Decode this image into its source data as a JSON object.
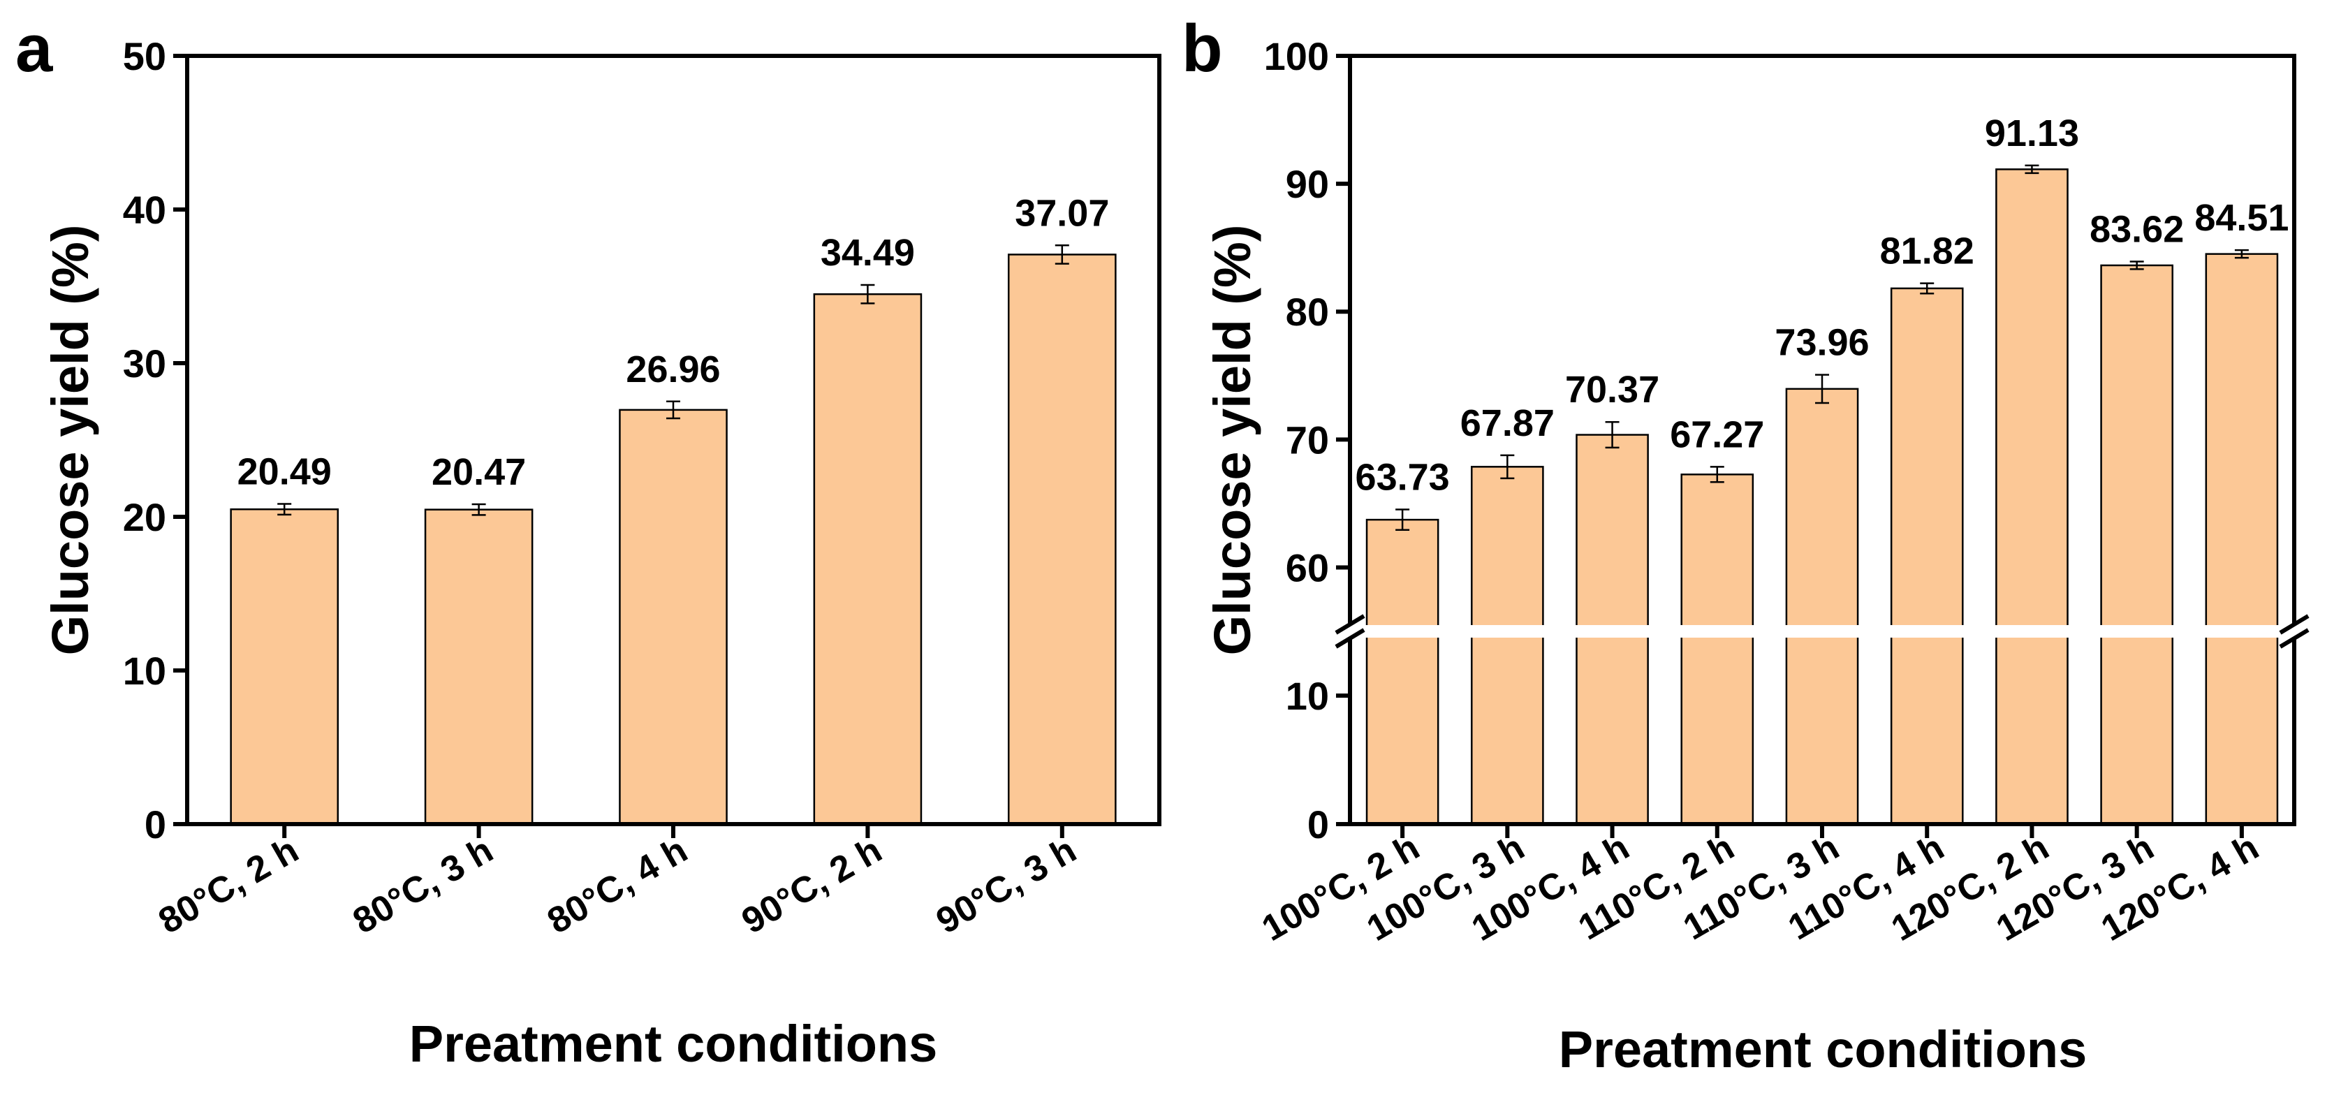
{
  "chart_data": [
    {
      "type": "bar",
      "panel_label": "a",
      "title": "",
      "xlabel": "Preatment conditions",
      "ylabel": "Glucose yield (%)",
      "ylim": [
        0,
        50
      ],
      "yticks": [
        0,
        10,
        20,
        30,
        40,
        50
      ],
      "categories": [
        "80°C, 2 h",
        "80°C, 3 h",
        "80°C, 4 h",
        "90°C, 2 h",
        "90°C, 3 h"
      ],
      "values": [
        20.49,
        20.47,
        26.96,
        34.49,
        37.07
      ],
      "error": [
        0.35,
        0.35,
        0.55,
        0.6,
        0.6
      ],
      "value_labels": [
        "20.49",
        "20.47",
        "26.96",
        "34.49",
        "37.07"
      ],
      "bar_color": "#FCC896",
      "grid": false
    },
    {
      "type": "bar",
      "panel_label": "b",
      "title": "",
      "xlabel": "Preatment conditions",
      "ylabel": "Glucose yield (%)",
      "broken_axis": {
        "lower": [
          0,
          15
        ],
        "upper": [
          55,
          100
        ]
      },
      "yticks": [
        0,
        10,
        60,
        70,
        80,
        90,
        100
      ],
      "categories": [
        "100°C, 2 h",
        "100°C, 3 h",
        "100°C, 4 h",
        "110°C, 2 h",
        "110°C, 3 h",
        "110°C, 4 h",
        "120°C, 2 h",
        "120°C, 3 h",
        "120°C, 4 h"
      ],
      "values": [
        63.73,
        67.87,
        70.37,
        67.27,
        73.96,
        81.82,
        91.13,
        83.62,
        84.51
      ],
      "error": [
        0.8,
        0.9,
        1.0,
        0.6,
        1.1,
        0.4,
        0.3,
        0.3,
        0.3
      ],
      "value_labels": [
        "63.73",
        "67.87",
        "70.37",
        "67.27",
        "73.96",
        "81.82",
        "91.13",
        "83.62",
        "84.51"
      ],
      "bar_color": "#FCC896",
      "grid": false
    }
  ]
}
